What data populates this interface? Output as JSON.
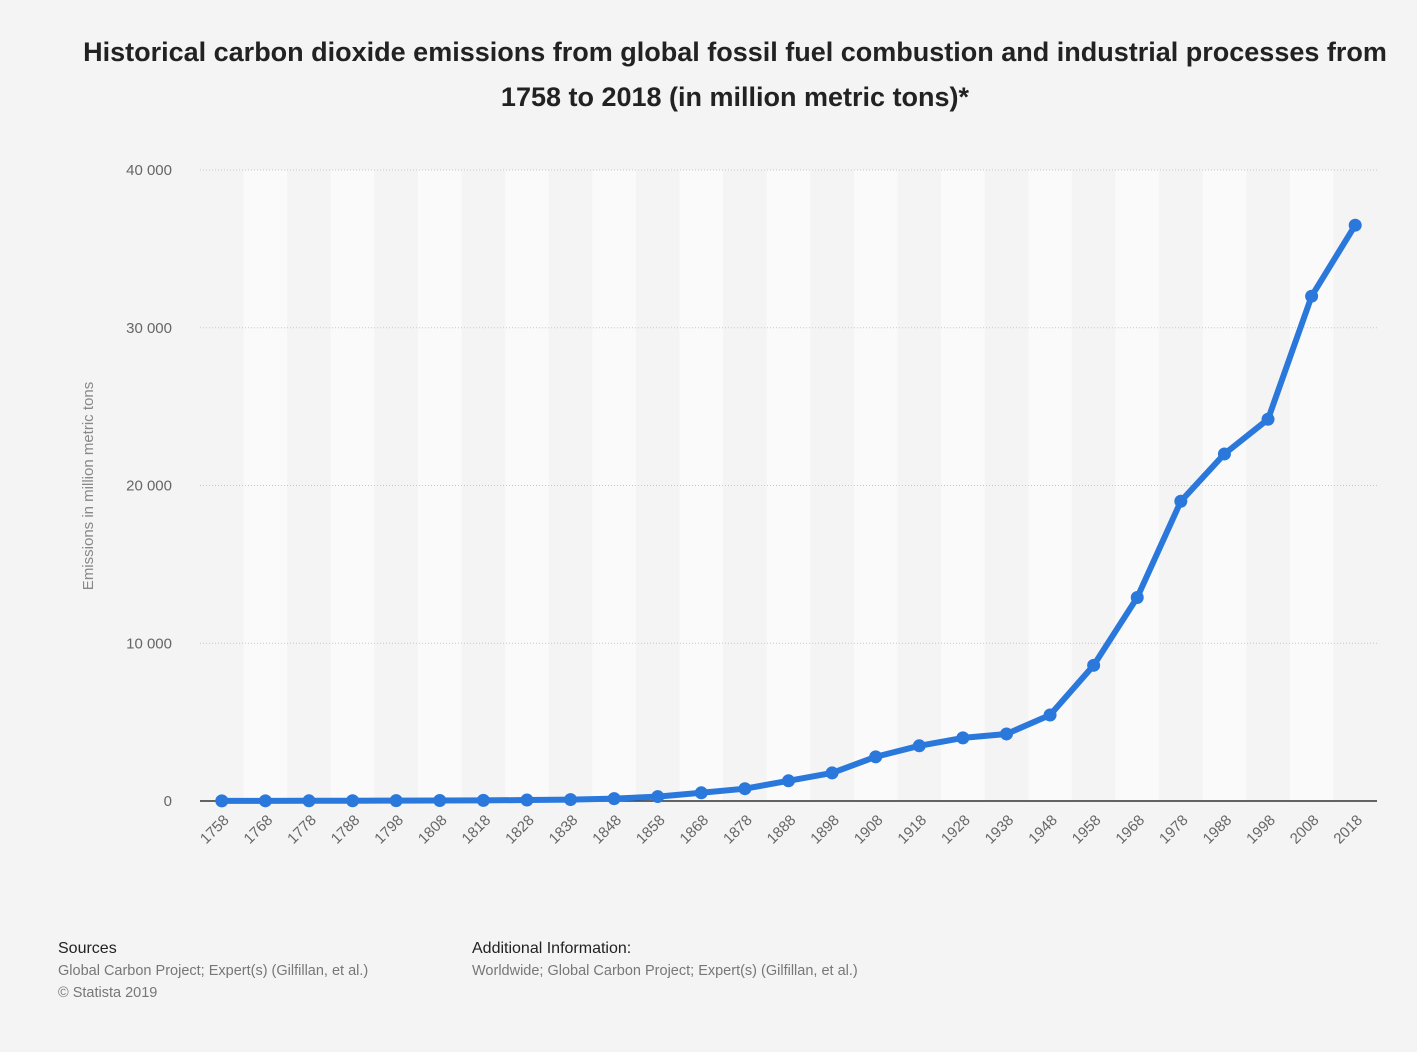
{
  "chart_data": {
    "type": "line",
    "title": "Historical carbon dioxide emissions from global fossil fuel combustion and industrial processes from 1758 to 2018 (in million metric tons)*",
    "ylabel": "Emissions in million metric tons",
    "xlabel": "",
    "ylim": [
      0,
      40000
    ],
    "yticks": [
      0,
      10000,
      20000,
      30000,
      40000
    ],
    "ytick_labels": [
      "0",
      "10 000",
      "20 000",
      "30 000",
      "40 000"
    ],
    "grid": true,
    "categories": [
      "1758",
      "1768",
      "1778",
      "1788",
      "1798",
      "1808",
      "1818",
      "1828",
      "1838",
      "1848",
      "1858",
      "1868",
      "1878",
      "1888",
      "1898",
      "1908",
      "1918",
      "1928",
      "1938",
      "1948",
      "1958",
      "1968",
      "1978",
      "1988",
      "1998",
      "2008",
      "2018"
    ],
    "series": [
      {
        "values": [
          10,
          11,
          13,
          17,
          23,
          31,
          40,
          60,
          90,
          150,
          280,
          520,
          780,
          1280,
          1780,
          2800,
          3500,
          4000,
          4250,
          5450,
          8600,
          12900,
          19000,
          22000,
          24200,
          32000,
          36500
        ],
        "color": "#2a78dc"
      }
    ]
  },
  "footer": {
    "sources_heading": "Sources",
    "sources_line1": "Global Carbon Project; Expert(s) (Gilfillan, et al.)",
    "sources_line2": "© Statista 2019",
    "additional_heading": "Additional Information:",
    "additional_line1": "Worldwide; Global Carbon Project; Expert(s) (Gilfillan, et al.)"
  }
}
